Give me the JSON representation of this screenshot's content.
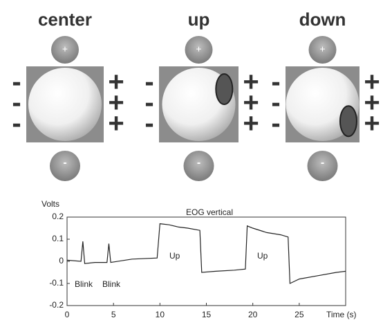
{
  "panels": [
    {
      "label": "center",
      "top": "+",
      "bottom": "-",
      "left": [
        "-",
        "-",
        "-"
      ],
      "right": [
        "+",
        "+",
        "+"
      ]
    },
    {
      "label": "up",
      "top": "+",
      "bottom": "-",
      "left": [
        "-",
        "-",
        "-"
      ],
      "right": [
        "+",
        "+",
        "+"
      ]
    },
    {
      "label": "down",
      "top": "+",
      "bottom": "-",
      "left": [
        "-",
        "-",
        "-"
      ],
      "right": [
        "+",
        "+",
        "+"
      ]
    }
  ],
  "chart_data": {
    "type": "line",
    "title": "EOG vertical",
    "ylabel": "Volts",
    "xlabel": "Time (s)",
    "annotations": [
      "Blink",
      "Blink",
      "Up",
      "Up"
    ],
    "x": [
      0,
      1.5,
      1.7,
      1.9,
      3,
      4.3,
      4.5,
      4.7,
      7,
      9.7,
      10,
      11,
      12,
      13,
      14.3,
      14.5,
      16,
      18,
      19.2,
      19.4,
      20,
      21.5,
      23,
      23.8,
      24,
      25,
      27,
      29,
      30
    ],
    "series": [
      {
        "name": "EOG",
        "color": "#222222",
        "values": [
          0.005,
          0,
          0.09,
          -0.01,
          -0.005,
          -0.005,
          0.08,
          -0.005,
          0.01,
          0.015,
          0.17,
          0.165,
          0.155,
          0.15,
          0.14,
          -0.05,
          -0.045,
          -0.04,
          -0.035,
          0.16,
          0.15,
          0.13,
          0.12,
          0.11,
          -0.1,
          -0.08,
          -0.065,
          -0.05,
          -0.045
        ]
      }
    ],
    "xlim": [
      0,
      30
    ],
    "xticks": [
      0,
      5,
      10,
      15,
      20,
      25
    ],
    "ylim": [
      -0.2,
      0.2
    ],
    "yticks": [
      -0.2,
      -0.1,
      0,
      0.1,
      0.2
    ]
  }
}
